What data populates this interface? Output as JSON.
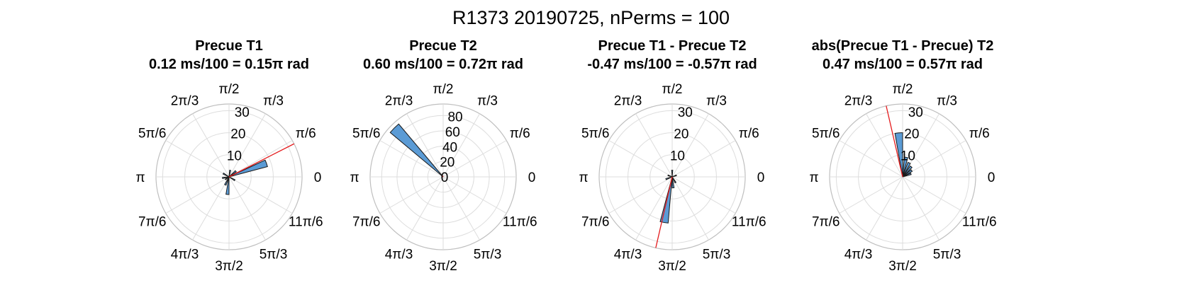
{
  "figure": {
    "suptitle": "R1373 20190725, nPerms = 100"
  },
  "chart_data": [
    {
      "type": "polar-histogram",
      "title": "Precue T1",
      "subtitle": "0.12 ms/100 = 0.15π rad",
      "r_ticks": [
        10,
        20,
        30
      ],
      "r_max": 33,
      "angle_tick_labels": [
        "0",
        "π/6",
        "π/3",
        "π/2",
        "2π/3",
        "5π/6",
        "π",
        "7π/6",
        "4π/3",
        "3π/2",
        "5π/3",
        "11π/6"
      ],
      "bin_width_deg": 10,
      "bins": [
        {
          "center_deg": 20,
          "count": 18
        },
        {
          "center_deg": 40,
          "count": 4
        },
        {
          "center_deg": 80,
          "count": 3
        },
        {
          "center_deg": 150,
          "count": 3
        },
        {
          "center_deg": 190,
          "count": 3
        },
        {
          "center_deg": 215,
          "count": 2
        },
        {
          "center_deg": 245,
          "count": 4
        },
        {
          "center_deg": 265,
          "count": 8
        },
        {
          "center_deg": 330,
          "count": 3
        }
      ],
      "mean_angle_deg": 27,
      "mean_line_length": 33
    },
    {
      "type": "polar-histogram",
      "title": "Precue T2",
      "subtitle": "0.60 ms/100 = 0.72π rad",
      "r_ticks": [
        0,
        20,
        40,
        60,
        80
      ],
      "r_max": 95,
      "angle_tick_labels": [
        "0",
        "π/6",
        "π/3",
        "π/2",
        "2π/3",
        "5π/6",
        "π",
        "7π/6",
        "4π/3",
        "3π/2",
        "5π/3",
        "11π/6"
      ],
      "bin_width_deg": 10,
      "bins": [
        {
          "center_deg": 135,
          "count": 90
        }
      ],
      "mean_angle_deg": 130,
      "mean_line_length": 3
    },
    {
      "type": "polar-histogram",
      "title": "Precue T1 - Precue T2",
      "subtitle": "-0.47 ms/100 = -0.57π rad",
      "r_ticks": [
        10,
        20,
        30
      ],
      "r_max": 33,
      "angle_tick_labels": [
        "0",
        "π/6",
        "π/3",
        "π/2",
        "2π/3",
        "5π/6",
        "π",
        "7π/6",
        "4π/3",
        "3π/2",
        "5π/3",
        "11π/6"
      ],
      "bin_width_deg": 10,
      "bins": [
        {
          "center_deg": 260,
          "count": 21
        },
        {
          "center_deg": 275,
          "count": 5
        },
        {
          "center_deg": 300,
          "count": 3
        },
        {
          "center_deg": 90,
          "count": 3
        },
        {
          "center_deg": 160,
          "count": 2
        },
        {
          "center_deg": 200,
          "count": 3
        },
        {
          "center_deg": 20,
          "count": 2
        }
      ],
      "mean_angle_deg": 257,
      "mean_line_length": 33
    },
    {
      "type": "polar-histogram",
      "title": "abs(Precue T1 - Precue) T2",
      "subtitle": "0.47 ms/100 = 0.57π rad",
      "r_ticks": [
        10,
        20,
        30
      ],
      "r_max": 33,
      "angle_tick_labels": [
        "0",
        "π/6",
        "π/3",
        "π/2",
        "2π/3",
        "5π/6",
        "π",
        "7π/6",
        "4π/3",
        "3π/2",
        "5π/3",
        "11π/6"
      ],
      "bin_width_deg": 10,
      "bins": [
        {
          "center_deg": 95,
          "count": 20
        },
        {
          "center_deg": 80,
          "count": 9
        },
        {
          "center_deg": 65,
          "count": 7
        },
        {
          "center_deg": 50,
          "count": 6
        },
        {
          "center_deg": 35,
          "count": 5
        },
        {
          "center_deg": 20,
          "count": 4
        }
      ],
      "mean_angle_deg": 103,
      "mean_line_length": 33
    }
  ],
  "colors": {
    "bar_fill": "#5b9bd5",
    "bar_edge": "#1a1a1a",
    "mean_line": "#e41a1c",
    "grid": "#dddddd",
    "outer_circle": "#bfbfbf",
    "text": "#000000"
  }
}
